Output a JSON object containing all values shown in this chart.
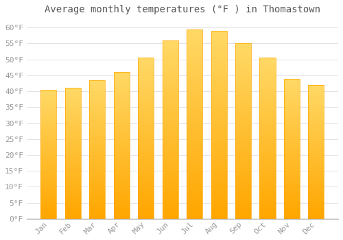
{
  "title": "Average monthly temperatures (°F ) in Thomastown",
  "months": [
    "Jan",
    "Feb",
    "Mar",
    "Apr",
    "May",
    "Jun",
    "Jul",
    "Aug",
    "Sep",
    "Oct",
    "Nov",
    "Dec"
  ],
  "values": [
    40.5,
    41.0,
    43.5,
    46.0,
    50.5,
    56.0,
    59.5,
    59.0,
    55.0,
    50.5,
    44.0,
    42.0
  ],
  "bar_color_top": "#FFD966",
  "bar_color_bottom": "#FFA500",
  "background_color": "#FFFFFF",
  "grid_color": "#DDDDDD",
  "ylim": [
    0,
    63
  ],
  "yticks": [
    0,
    5,
    10,
    15,
    20,
    25,
    30,
    35,
    40,
    45,
    50,
    55,
    60
  ],
  "title_fontsize": 10,
  "tick_fontsize": 8,
  "tick_color": "#999999",
  "title_color": "#555555",
  "bar_width": 0.65
}
